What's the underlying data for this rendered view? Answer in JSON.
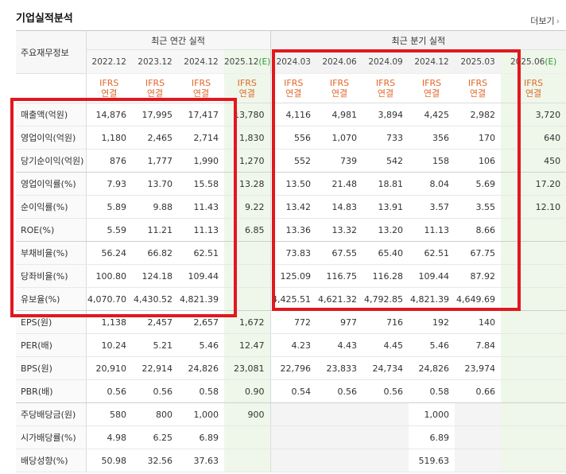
{
  "title": "기업실적분석",
  "more_label": "더보기",
  "more_icon": "chevron-right-icon",
  "row_header_label": "주요재무정보",
  "groups": {
    "annual": "최근 연간 실적",
    "quarter": "최근 분기 실적"
  },
  "periods": [
    {
      "label": "2022.12",
      "est": ""
    },
    {
      "label": "2023.12",
      "est": ""
    },
    {
      "label": "2024.12",
      "est": ""
    },
    {
      "label": "2025.12",
      "est": "(E)"
    },
    {
      "label": "2024.03",
      "est": ""
    },
    {
      "label": "2024.06",
      "est": ""
    },
    {
      "label": "2024.09",
      "est": ""
    },
    {
      "label": "2024.12",
      "est": ""
    },
    {
      "label": "2025.03",
      "est": ""
    },
    {
      "label": "2025.06",
      "est": "(E)"
    }
  ],
  "ifrs": {
    "top": "IFRS",
    "bottom": "연결"
  },
  "rows": [
    {
      "label": "매출액(억원)",
      "values": [
        "14,876",
        "17,995",
        "17,417",
        "13,780",
        "4,116",
        "4,981",
        "3,894",
        "4,425",
        "2,982",
        "3,720"
      ]
    },
    {
      "label": "영업이익(억원)",
      "values": [
        "1,180",
        "2,465",
        "2,714",
        "1,830",
        "556",
        "1,070",
        "733",
        "356",
        "170",
        "640"
      ]
    },
    {
      "label": "당기순이익(억원)",
      "values": [
        "876",
        "1,777",
        "1,990",
        "1,270",
        "552",
        "739",
        "542",
        "158",
        "106",
        "450"
      ]
    },
    {
      "label": "영업이익률(%)",
      "values": [
        "7.93",
        "13.70",
        "15.58",
        "13.28",
        "13.50",
        "21.48",
        "18.81",
        "8.04",
        "5.69",
        "17.20"
      ]
    },
    {
      "label": "순이익률(%)",
      "values": [
        "5.89",
        "9.88",
        "11.43",
        "9.22",
        "13.42",
        "14.83",
        "13.91",
        "3.57",
        "3.55",
        "12.10"
      ]
    },
    {
      "label": "ROE(%)",
      "values": [
        "5.59",
        "11.21",
        "11.13",
        "6.85",
        "13.36",
        "13.32",
        "13.20",
        "11.13",
        "8.66",
        ""
      ]
    },
    {
      "label": "부채비율(%)",
      "values": [
        "56.24",
        "66.82",
        "62.51",
        "",
        "73.83",
        "67.55",
        "65.40",
        "62.51",
        "67.75",
        ""
      ]
    },
    {
      "label": "당좌비율(%)",
      "values": [
        "100.80",
        "124.18",
        "109.44",
        "",
        "125.09",
        "116.75",
        "116.28",
        "109.44",
        "87.92",
        ""
      ]
    },
    {
      "label": "유보율(%)",
      "values": [
        "4,070.70",
        "4,430.52",
        "4,821.39",
        "",
        "4,425.51",
        "4,621.32",
        "4,792.85",
        "4,821.39",
        "4,649.69",
        ""
      ]
    },
    {
      "label": "EPS(원)",
      "values": [
        "1,138",
        "2,457",
        "2,657",
        "1,672",
        "772",
        "977",
        "716",
        "192",
        "140",
        ""
      ]
    },
    {
      "label": "PER(배)",
      "values": [
        "10.24",
        "5.21",
        "5.46",
        "12.47",
        "4.23",
        "4.43",
        "4.45",
        "5.46",
        "7.84",
        ""
      ]
    },
    {
      "label": "BPS(원)",
      "values": [
        "20,910",
        "22,914",
        "24,826",
        "23,081",
        "22,796",
        "23,833",
        "24,734",
        "24,826",
        "23,974",
        ""
      ]
    },
    {
      "label": "PBR(배)",
      "values": [
        "0.56",
        "0.56",
        "0.58",
        "0.90",
        "0.54",
        "0.56",
        "0.56",
        "0.58",
        "0.66",
        ""
      ]
    },
    {
      "label": "주당배당금(원)",
      "values": [
        "580",
        "800",
        "1,000",
        "900",
        "",
        "",
        "",
        "1,000",
        "",
        ""
      ]
    },
    {
      "label": "시가배당률(%)",
      "values": [
        "4.98",
        "6.25",
        "6.89",
        "",
        "",
        "",
        "",
        "6.89",
        "",
        ""
      ]
    },
    {
      "label": "배당성향(%)",
      "values": [
        "50.98",
        "32.56",
        "37.63",
        "",
        "",
        "",
        "",
        "519.63",
        "",
        ""
      ]
    }
  ],
  "highlight_color": "#e2171f"
}
